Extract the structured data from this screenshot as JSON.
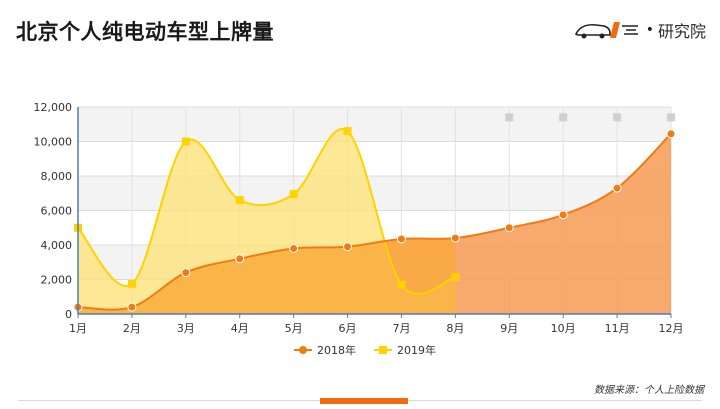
{
  "header": {
    "title": "北京个人纯电动车型上牌量",
    "brand_text": "研究院"
  },
  "footer": {
    "source": "数据来源：个人上险数据"
  },
  "colors": {
    "series_2018": "#f07b12",
    "series_2018_fill": "#f7a15e",
    "series_2019": "#ffd200",
    "series_2019_fill": "#fde27a",
    "overlap_fill": "#f9a93a",
    "missing_marker": "#d0d0d0",
    "footer_bar": "#f06b12"
  },
  "chart_data": {
    "type": "area",
    "categories": [
      "1月",
      "2月",
      "3月",
      "4月",
      "5月",
      "6月",
      "7月",
      "8月",
      "9月",
      "10月",
      "11月",
      "12月"
    ],
    "y_ticks": [
      "0",
      "2,000",
      "4,000",
      "6,000",
      "8,000",
      "10,000",
      "12,000"
    ],
    "ylim": [
      0,
      12000
    ],
    "grid": true,
    "legend_position": "bottom",
    "series": [
      {
        "name": "2018年",
        "values": [
          400,
          400,
          2400,
          3200,
          3800,
          3900,
          4350,
          4400,
          5000,
          5750,
          7300,
          10450
        ]
      },
      {
        "name": "2019年",
        "values": [
          5000,
          1750,
          10000,
          6600,
          6950,
          10600,
          1700,
          2150,
          null,
          null,
          null,
          null
        ]
      }
    ],
    "placeholder_markers": [
      {
        "x": "9月",
        "y": 11400
      },
      {
        "x": "10月",
        "y": 11400
      },
      {
        "x": "11月",
        "y": 11400
      },
      {
        "x": "12月",
        "y": 11400
      }
    ]
  }
}
